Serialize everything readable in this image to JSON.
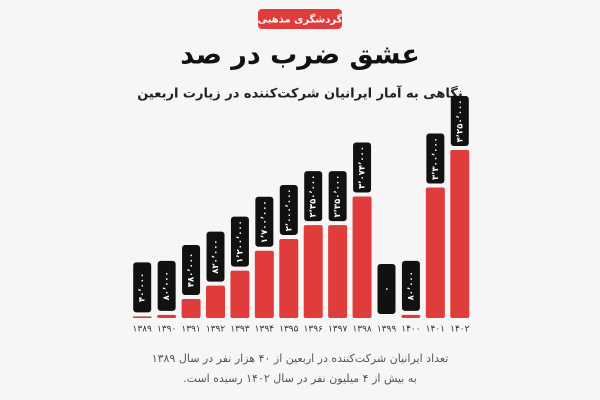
{
  "chart_data": {
    "type": "bar",
    "badge": "گردشگری مذهبی",
    "title": "عشق ضرب در صد",
    "subtitle": "نگاهی به آمار ایرانیان شرکت‌کننده در زیارت اربعین",
    "categories": [
      "۱۳۸۹",
      "۱۳۹۰",
      "۱۳۹۱",
      "۱۳۹۲",
      "۱۳۹۳",
      "۱۳۹۴",
      "۱۳۹۵",
      "۱۳۹۶",
      "۱۳۹۷",
      "۱۳۹۸",
      "۱۳۹۹",
      "۱۴۰۰",
      "۱۴۰۱",
      "۱۴۰۲"
    ],
    "values": [
      40000,
      80000,
      480000,
      820000,
      1200000,
      1700000,
      2000000,
      2350000,
      2350000,
      3074000,
      0,
      80000,
      3300000,
      4250000
    ],
    "value_labels": [
      "۴۰٬۰۰۰",
      "۸۰٬۰۰۰",
      "۴۸۰٬۰۰۰",
      "۸۲۰٬۰۰۰",
      "۱٬۲۰۰٬۰۰۰",
      "۱٬۷۰۰٬۰۰۰",
      "۲٬۰۰۰٬۰۰۰",
      "۲٬۳۵۰٬۰۰۰",
      "۲٬۳۵۰٬۰۰۰",
      "۳٬۰۷۴٬۰۰۰",
      "۰",
      "۸۰٬۰۰۰",
      "۳٬۳۰۰٬۰۰۰",
      "۴٬۲۵۰٬۰۰۰"
    ],
    "color": "#e03c3c",
    "caption": [
      "تعداد ایرانیان شرکت‌کننده در اربعین از ۴۰ هزار نفر در سال ۱۳۸۹",
      "به بیش از ۴ میلیون نفر در سال ۱۴۰۲ رسیده است."
    ]
  }
}
